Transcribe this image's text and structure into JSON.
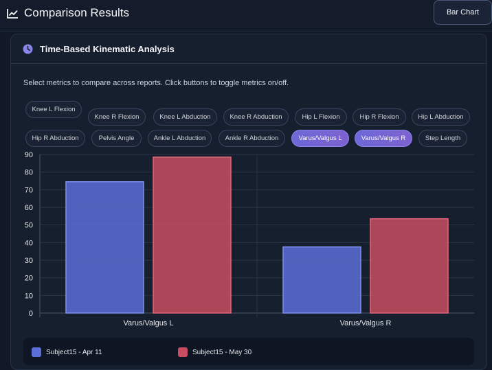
{
  "header": {
    "title": "Comparison Results",
    "view_button": "Bar Chart"
  },
  "panel": {
    "title": "Time-Based Kinematic Analysis",
    "instructions": "Select metrics to compare across reports. Click buttons to toggle metrics on/off."
  },
  "metrics": [
    {
      "label": "Knee L Flexion",
      "active": false
    },
    {
      "label": "Knee R Flexion",
      "active": false
    },
    {
      "label": "Knee L Abduction",
      "active": false
    },
    {
      "label": "Knee R Abduction",
      "active": false
    },
    {
      "label": "Hip L Flexion",
      "active": false
    },
    {
      "label": "Hip R Flexion",
      "active": false
    },
    {
      "label": "Hip L Abduction",
      "active": false
    },
    {
      "label": "Hip R Abduction",
      "active": false
    },
    {
      "label": "Pelvis Angle",
      "active": false
    },
    {
      "label": "Ankle L Abduction",
      "active": false
    },
    {
      "label": "Ankle R Abduction",
      "active": false
    },
    {
      "label": "Varus/Valgus L",
      "active": true
    },
    {
      "label": "Varus/Valgus R",
      "active": true
    },
    {
      "label": "Step Length",
      "active": false
    }
  ],
  "chart_data": {
    "type": "bar",
    "categories": [
      "Varus/Valgus L",
      "Varus/Valgus R"
    ],
    "series": [
      {
        "name": "Subject15 - Apr 11",
        "values": [
          74.5,
          37.5
        ],
        "color": "#5b6fd6"
      },
      {
        "name": "Subject15 - May 30",
        "values": [
          88.5,
          53.5
        ],
        "color": "#c94d62"
      }
    ],
    "ylim": [
      0,
      90
    ],
    "yticks": [
      0,
      10,
      20,
      30,
      40,
      50,
      60,
      70,
      80,
      90
    ],
    "grid": true,
    "legend": "bottom"
  },
  "colors": {
    "accent": "#6d68d8",
    "background": "#111827",
    "panel": "#161f2e"
  }
}
